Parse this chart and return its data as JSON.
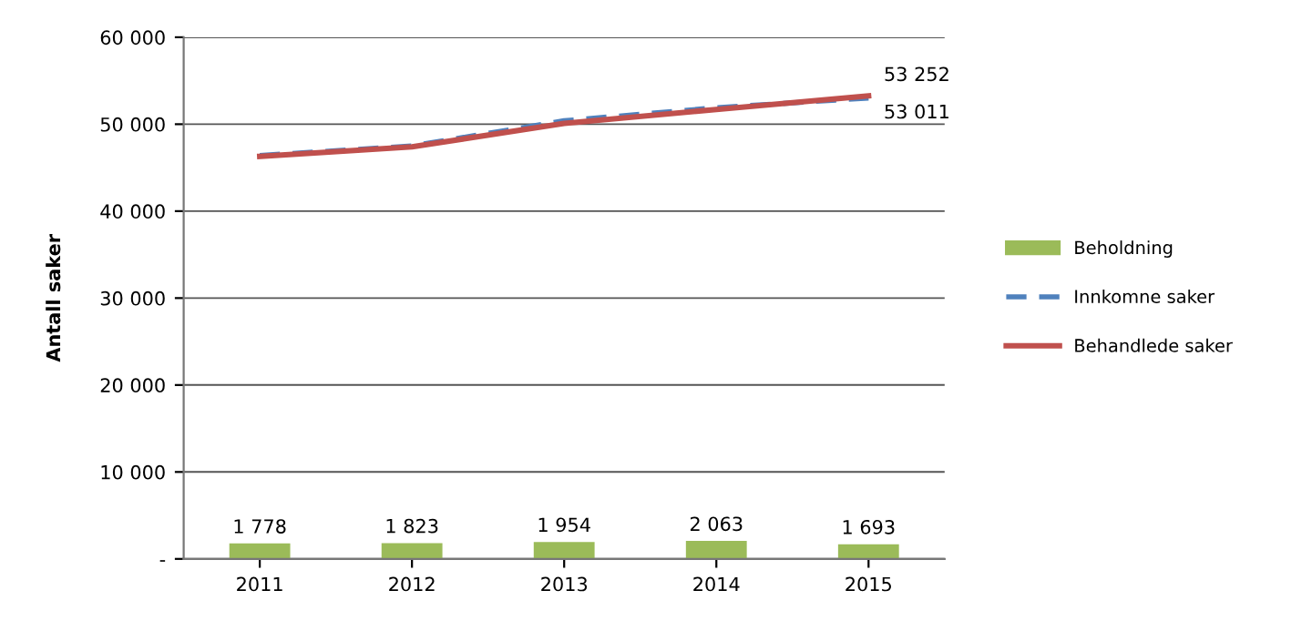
{
  "chart_data": {
    "type": "bar",
    "ylabel": "Antall saker",
    "categories": [
      "2011",
      "2012",
      "2013",
      "2014",
      "2015"
    ],
    "series": [
      {
        "name": "Beholdning",
        "color": "#9bbb59",
        "values": [
          1778,
          1823,
          1954,
          2063,
          1693
        ],
        "value_labels": [
          "1 778",
          "1 823",
          "1 954",
          "2 063",
          "1 693"
        ]
      },
      {
        "name": "Innkomne saker",
        "type": "line",
        "color": "#4f81bd",
        "line_style": "dashed",
        "values": [
          46400,
          47500,
          50400,
          51900,
          53011
        ],
        "value_labels": [
          null,
          null,
          null,
          null,
          "53 011"
        ]
      },
      {
        "name": "Behandlede saker",
        "type": "line",
        "color": "#c0504d",
        "line_style": "solid",
        "values": [
          46300,
          47400,
          50100,
          51700,
          53252
        ],
        "value_labels": [
          null,
          null,
          null,
          null,
          "53 252"
        ]
      }
    ],
    "ylim": [
      0,
      60000
    ],
    "yticks": [
      {
        "value": 0,
        "label": "-"
      },
      {
        "value": 10000,
        "label": "10 000"
      },
      {
        "value": 20000,
        "label": "20 000"
      },
      {
        "value": 30000,
        "label": "30 000"
      },
      {
        "value": 40000,
        "label": "40 000"
      },
      {
        "value": 50000,
        "label": "50 000"
      },
      {
        "value": 60000,
        "label": "60 000"
      }
    ],
    "grid": "y",
    "legend": "right",
    "marker": "none"
  }
}
